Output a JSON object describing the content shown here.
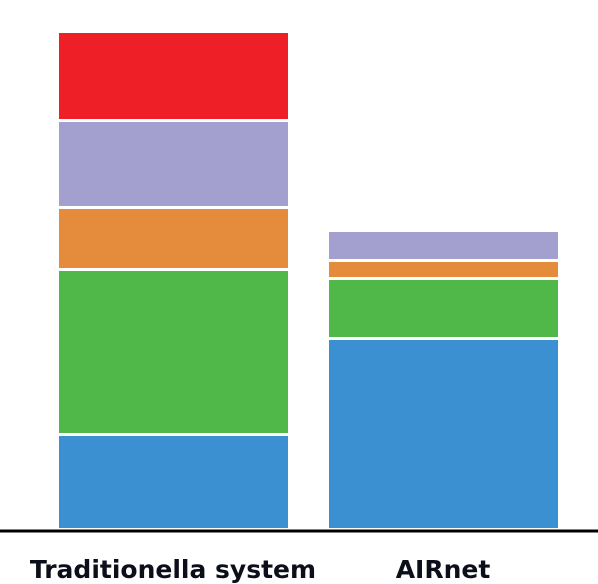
{
  "chart_data": {
    "type": "bar",
    "stacked": true,
    "categories": [
      "Traditionella system",
      "AIRnet"
    ],
    "series": [
      {
        "color": "#3a90d0",
        "values": [
          92,
          188
        ]
      },
      {
        "color": "#50b849",
        "values": [
          165,
          60
        ]
      },
      {
        "color": "#e58c3c",
        "values": [
          62,
          18
        ]
      },
      {
        "color": "#a39fcf",
        "values": [
          87,
          30
        ]
      },
      {
        "color": "#ee1f27",
        "values": [
          89,
          0
        ]
      }
    ],
    "ylim": [
      0,
      520
    ],
    "grid": false,
    "legend": "none",
    "title": "",
    "xlabel": "",
    "ylabel": ""
  }
}
